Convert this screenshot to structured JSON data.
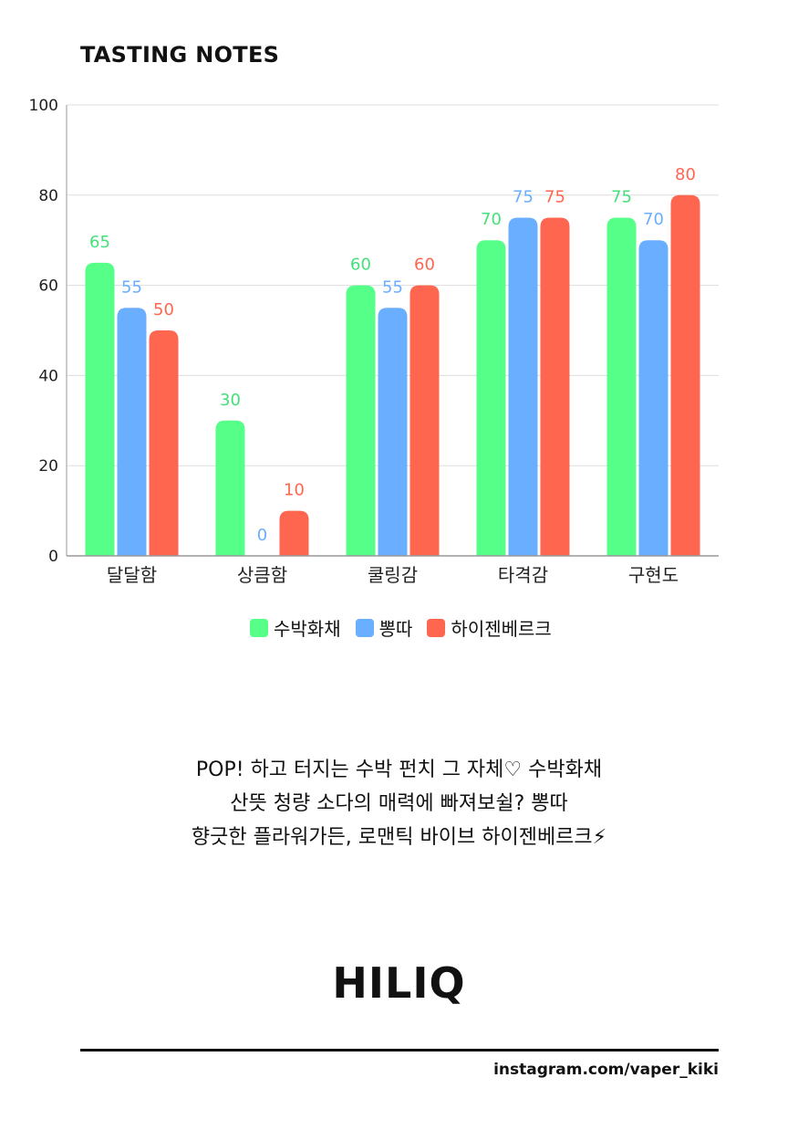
{
  "chart_data": {
    "type": "bar",
    "title": "TASTING NOTES",
    "categories": [
      "달달함",
      "상큼함",
      "쿨링감",
      "타격감",
      "구현도"
    ],
    "series": [
      {
        "name": "수박화채",
        "color": "#55FF88",
        "label_color": "#45E07A",
        "values": [
          65,
          30,
          60,
          70,
          75
        ]
      },
      {
        "name": "뽕따",
        "color": "#6AAEFF",
        "label_color": "#6AAEFF",
        "values": [
          55,
          0,
          55,
          75,
          70
        ]
      },
      {
        "name": "하이젠베르크",
        "color": "#FF6650",
        "label_color": "#FF6650",
        "values": [
          50,
          10,
          60,
          75,
          80
        ]
      }
    ],
    "ylim": [
      0,
      100
    ],
    "yticks": [
      0,
      20,
      40,
      60,
      80,
      100
    ],
    "grid": true,
    "legend": "bottom"
  },
  "description": {
    "lines": [
      "POP! 하고 터지는 수박 펀치 그 자체♡ 수박화채",
      "산뜻 청량 소다의 매력에 빠져보쉴? 뽕따",
      "향긋한 플라워가든, 로맨틱 바이브 하이젠베르크⚡"
    ]
  },
  "brand": "HILIQ",
  "footer": {
    "handle": "instagram.com/vaper_kiki"
  }
}
